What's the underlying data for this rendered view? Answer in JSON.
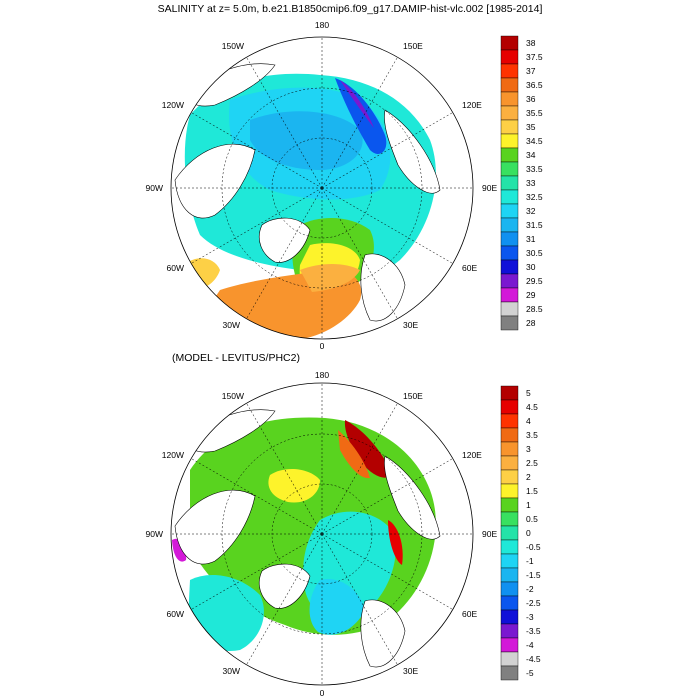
{
  "top_panel": {
    "title": "SALINITY at z=   5.0m, b.e21.B1850cmip6.f09_g17.DAMIP-hist-vlc.002 [1985-2014]",
    "lon_labels": [
      "180",
      "150E",
      "120E",
      "90E",
      "60E",
      "30E",
      "0",
      "30W",
      "60W",
      "90W",
      "120W",
      "150W"
    ],
    "colorbar_labels": [
      "38",
      "37.5",
      "37",
      "36.5",
      "36",
      "35.5",
      "35",
      "34.5",
      "34",
      "33.5",
      "33",
      "32.5",
      "32",
      "31.5",
      "31",
      "30.5",
      "30",
      "29.5",
      "29",
      "28.5",
      "28"
    ],
    "colorbar_colors": [
      "#b30000",
      "#e60000",
      "#ff3300",
      "#f06a14",
      "#f8942d",
      "#fbb040",
      "#fdd046",
      "#fdf32b",
      "#59d31f",
      "#38e060",
      "#24e3a8",
      "#1fe8d8",
      "#1fd4f4",
      "#1bb5f0",
      "#1090f0",
      "#0a56ee",
      "#1010d8",
      "#7a18d0",
      "#d319d8",
      "#d2d2d2",
      "#808080"
    ]
  },
  "bottom_panel": {
    "title": "(MODEL - LEVITUS/PHC2)",
    "lon_labels": [
      "180",
      "150E",
      "120E",
      "90E",
      "60E",
      "30E",
      "0",
      "30W",
      "60W",
      "90W",
      "120W",
      "150W"
    ],
    "colorbar_labels": [
      "5",
      "4.5",
      "4",
      "3.5",
      "3",
      "2.5",
      "2",
      "1.5",
      "1",
      "0.5",
      "0",
      "-0.5",
      "-1",
      "-1.5",
      "-2",
      "-2.5",
      "-3",
      "-3.5",
      "-4",
      "-4.5",
      "-5"
    ],
    "colorbar_colors": [
      "#b30000",
      "#e60000",
      "#ff3300",
      "#f06a14",
      "#f8942d",
      "#fbb040",
      "#fdd046",
      "#fdf32b",
      "#59d31f",
      "#38e060",
      "#24e3a8",
      "#1fe8d8",
      "#1fd4f4",
      "#1bb5f0",
      "#1090f0",
      "#0a56ee",
      "#1010d8",
      "#7a18d0",
      "#d319d8",
      "#d2d2d2",
      "#808080"
    ]
  },
  "map": {
    "land_color": "#ffffff",
    "grid_style": "dashed"
  }
}
